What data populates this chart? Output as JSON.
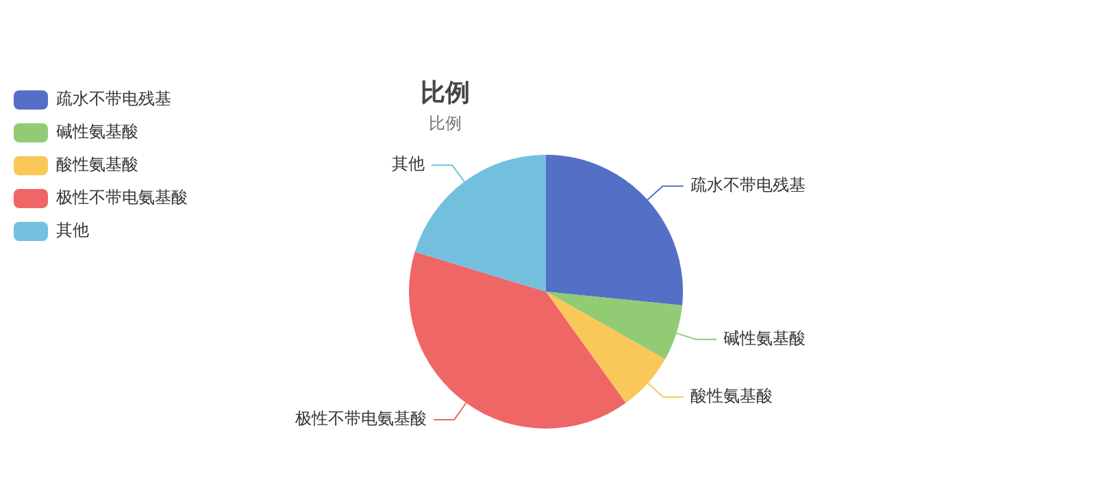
{
  "chart_data": {
    "type": "pie",
    "title": "比例",
    "subtitle": "比例",
    "categories": [
      "疏水不带电残基",
      "碱性氨基酸",
      "酸性氨基酸",
      "极性不带电氨基酸",
      "其他"
    ],
    "values": [
      26.6,
      6.6,
      6.9,
      39.6,
      20.3
    ],
    "colors": [
      "#5470c6",
      "#91cc75",
      "#fac858",
      "#ee6666",
      "#73c0de"
    ],
    "legend": "top left"
  }
}
